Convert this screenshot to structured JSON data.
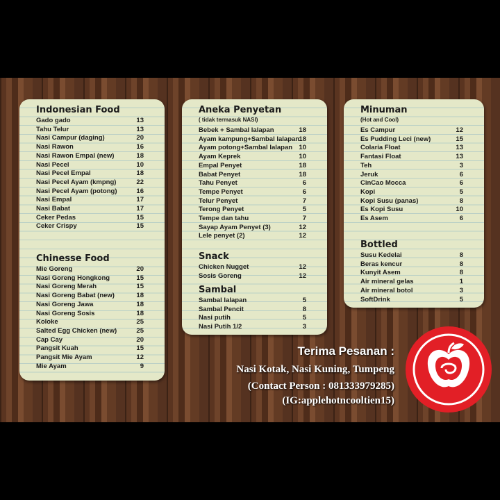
{
  "columns": [
    {
      "sections": [
        {
          "title": "Indonesian Food",
          "items": [
            [
              "Gado gado",
              13
            ],
            [
              "Tahu Telur",
              13
            ],
            [
              "Nasi Campur (daging)",
              20
            ],
            [
              "Nasi Rawon",
              16
            ],
            [
              "Nasi Rawon Empal (new)",
              18
            ],
            [
              "Nasi Pecel",
              10
            ],
            [
              "Nasi Pecel Empal",
              18
            ],
            [
              "Nasi Pecel Ayam (kmpng)",
              22
            ],
            [
              "Nasi Pecel Ayam (potong)",
              16
            ],
            [
              "Nasi Empal",
              17
            ],
            [
              "Nasi Babat",
              17
            ],
            [
              "Ceker Pedas",
              15
            ],
            [
              "Ceker Crispy",
              15
            ]
          ]
        },
        {
          "title": "Chinesse Food",
          "items": [
            [
              "Mie Goreng",
              20
            ],
            [
              "Nasi Goreng Hongkong",
              15
            ],
            [
              "Nasi Goreng Merah",
              15
            ],
            [
              "Nasi Goreng Babat (new)",
              18
            ],
            [
              "Nasi Goreng Jawa",
              18
            ],
            [
              "Nasi Goreng Sosis",
              18
            ],
            [
              "Koloke",
              25
            ],
            [
              "Salted Egg Chicken (new)",
              25
            ],
            [
              "Cap Cay",
              20
            ],
            [
              "Pangsit Kuah",
              15
            ],
            [
              "Pangsit Mie Ayam",
              12
            ],
            [
              "Mie Ayam",
              9
            ]
          ]
        }
      ]
    },
    {
      "sections": [
        {
          "title": "Aneka Penyetan",
          "subtitle": "( tidak termasuk NASI)",
          "items": [
            [
              "Bebek + Sambal lalapan",
              18
            ],
            [
              "Ayam kampung+Sambal lalapan",
              18
            ],
            [
              "Ayam potong+Sambal lalapan",
              10
            ],
            [
              "Ayam Keprek",
              10
            ],
            [
              "Empal Penyet",
              18
            ],
            [
              "Babat Penyet",
              18
            ],
            [
              "Tahu Penyet",
              6
            ],
            [
              "Tempe Penyet",
              6
            ],
            [
              "Telur Penyet",
              7
            ],
            [
              "Terong Penyet",
              5
            ],
            [
              "Tempe dan tahu",
              7
            ],
            [
              "Sayap Ayam Penyet (3)",
              12
            ],
            [
              "Lele penyet (2)",
              12
            ]
          ]
        },
        {
          "title": "Snack",
          "items": [
            [
              "Chicken Nugget",
              12
            ],
            [
              "Sosis Goreng",
              12
            ]
          ]
        },
        {
          "title": "Sambal",
          "items": [
            [
              "Sambal lalapan",
              5
            ],
            [
              "Sambal Pencit",
              8
            ],
            [
              "Nasi putih",
              5
            ],
            [
              "Nasi Putih 1/2",
              3
            ]
          ]
        }
      ]
    },
    {
      "sections": [
        {
          "title": "Minuman",
          "subtitle": "(Hot and Cool)",
          "items": [
            [
              "Es Campur",
              12
            ],
            [
              "Es Pudding Leci (new)",
              15
            ],
            [
              "Colaria Float",
              13
            ],
            [
              "Fantasi Float",
              13
            ],
            [
              "Teh",
              3
            ],
            [
              "Jeruk",
              6
            ],
            [
              "CinCao Mocca",
              6
            ],
            [
              "Kopi",
              5
            ],
            [
              "Kopi Susu (panas)",
              8
            ],
            [
              "Es Kopi Susu",
              10
            ],
            [
              "Es Asem",
              6
            ]
          ]
        },
        {
          "title": "Bottled",
          "items": [
            [
              "Susu Kedelai",
              8
            ],
            [
              "Beras kencur",
              8
            ],
            [
              "Kunyit Asem",
              8
            ],
            [
              "Air mineral gelas",
              1
            ],
            [
              "Air mineral botol",
              3
            ],
            [
              "SoftDrink",
              5
            ]
          ]
        }
      ]
    }
  ],
  "footer": {
    "title": "Terima Pesanan :",
    "lines": [
      "Nasi Kotak, Nasi Kuning, Tumpeng",
      "(Contact Person : 081333979285)",
      "(IG:applehotncooltien15)"
    ]
  }
}
